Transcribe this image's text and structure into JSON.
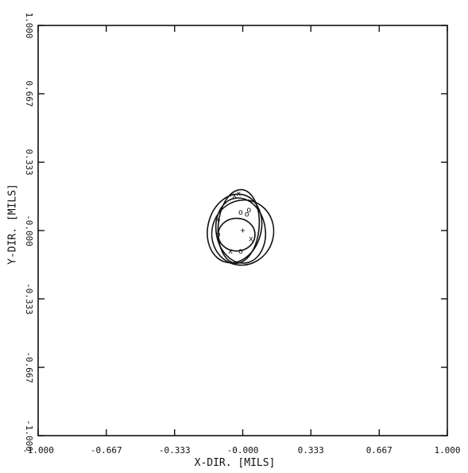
{
  "chart_data": {
    "type": "line",
    "title": "",
    "xlabel": "X-DIR.  [MILS]",
    "ylabel": "Y-DIR.  [MILS]",
    "xlim": [
      -1.0,
      1.0
    ],
    "ylim": [
      -1.0,
      1.0
    ],
    "grid": false,
    "x_ticks": [
      "-1.000",
      "-0.667",
      "-0.333",
      "-0.000",
      "0.333",
      "0.667",
      "1.000"
    ],
    "y_ticks": [
      "-1.000",
      "-0.667",
      "-0.333",
      "-0.000",
      "0.333",
      "0.667",
      "1.000"
    ],
    "x_tick_values": [
      -1.0,
      -0.667,
      -0.333,
      0.0,
      0.333,
      0.667,
      1.0
    ],
    "y_tick_values": [
      -1.0,
      -0.667,
      -0.333,
      0.0,
      0.333,
      0.667,
      1.0
    ],
    "series": [
      {
        "cx": -0.04,
        "cy": 0.01,
        "rx": 0.13,
        "ry": 0.17,
        "rotation_deg": 15
      },
      {
        "cx": -0.01,
        "cy": 0.0,
        "rx": 0.12,
        "ry": 0.16,
        "rotation_deg": -10
      },
      {
        "cx": 0.0,
        "cy": -0.01,
        "rx": 0.15,
        "ry": 0.16,
        "rotation_deg": 20
      },
      {
        "cx": -0.02,
        "cy": 0.02,
        "rx": 0.1,
        "ry": 0.18,
        "rotation_deg": 5
      },
      {
        "cx": -0.03,
        "cy": -0.02,
        "rx": 0.09,
        "ry": 0.08,
        "rotation_deg": 0
      }
    ],
    "center_marker": {
      "x": 0.0,
      "y": 0.0,
      "symbol": "+"
    },
    "markers": [
      {
        "x": -0.04,
        "y": 0.17,
        "symbol": "x"
      },
      {
        "x": -0.02,
        "y": 0.18,
        "symbol": "x"
      },
      {
        "x": 0.02,
        "y": 0.08,
        "symbol": "o"
      },
      {
        "x": -0.01,
        "y": 0.09,
        "symbol": "o"
      },
      {
        "x": -0.12,
        "y": 0.05,
        "symbol": "+"
      },
      {
        "x": 0.04,
        "y": -0.04,
        "symbol": "x"
      },
      {
        "x": -0.12,
        "y": -0.02,
        "symbol": "o"
      },
      {
        "x": -0.06,
        "y": -0.1,
        "symbol": "x"
      },
      {
        "x": -0.01,
        "y": -0.1,
        "symbol": "o"
      },
      {
        "x": 0.03,
        "y": 0.1,
        "symbol": "o"
      }
    ]
  }
}
